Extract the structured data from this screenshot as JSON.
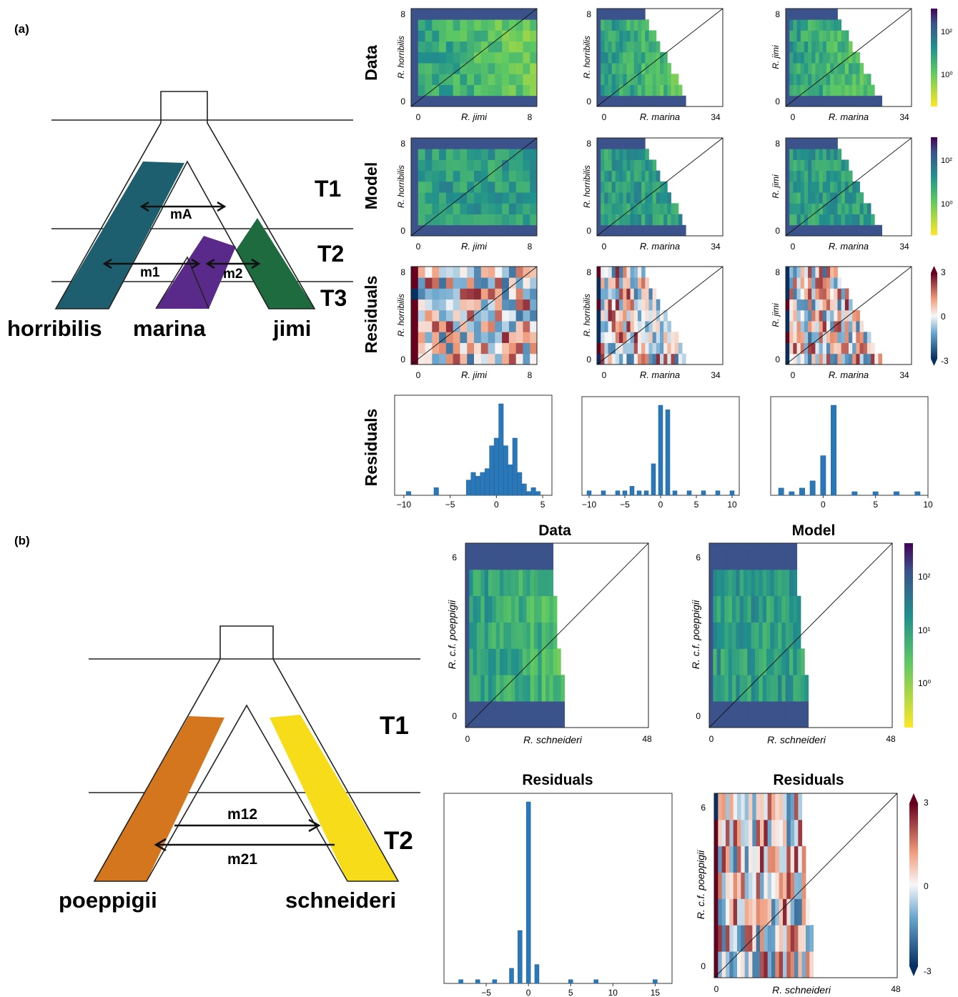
{
  "panel_a": {
    "tag": "(a)",
    "epochs": [
      "T1",
      "T2",
      "T3"
    ],
    "migrations": [
      "mA",
      "m1",
      "m2"
    ],
    "species": [
      "horribilis",
      "marina",
      "jimi"
    ],
    "row_labels": [
      "Data",
      "Model",
      "Residuals",
      "Residuals"
    ],
    "plots": [
      {
        "ylabel": "R. horribilis",
        "xlabel": "R. jimi",
        "ymin": "0",
        "ymax": "8",
        "xmin": "0",
        "xmax": "8"
      },
      {
        "ylabel": "R. horribilis",
        "xlabel": "R. marina",
        "ymin": "0",
        "ymax": "8",
        "xmin": "0",
        "xmax": "34"
      },
      {
        "ylabel": "R. jimi",
        "xlabel": "R. marina",
        "ymin": "0",
        "ymax": "8",
        "xmin": "0",
        "xmax": "34"
      }
    ],
    "colorbar_counts": [
      "10²",
      "10⁰"
    ],
    "colorbar_resid": [
      "3",
      "0",
      "-3"
    ],
    "hist_ticks": [
      [
        "−10",
        "−5",
        "0",
        "5"
      ],
      [
        "−10",
        "−5",
        "0",
        "5",
        "10"
      ],
      [
        "0",
        "5",
        "10"
      ]
    ]
  },
  "panel_b": {
    "tag": "(b)",
    "epochs": [
      "T1",
      "T2"
    ],
    "migrations": [
      "m12",
      "m21"
    ],
    "species": [
      "poeppigii",
      "schneideri"
    ],
    "titles": [
      "Data",
      "Model",
      "Residuals",
      "Residuals"
    ],
    "ylabel": "R. c.f. poeppigii",
    "xlabel": "R. schneideri",
    "ymin": "0",
    "ymax": "6",
    "xmin": "0",
    "xmax": "48",
    "colorbar_counts": [
      "10²",
      "10¹",
      "10⁰"
    ],
    "colorbar_resid": [
      "3",
      "0",
      "-3"
    ],
    "hist_ticks": [
      "−5",
      "0",
      "5",
      "10",
      "15"
    ]
  },
  "colors": {
    "horribilis": "#1d5f6e",
    "marina": "#5a2a8a",
    "jimi": "#1d6b3e",
    "poeppigii": "#d4761e",
    "schneideri": "#f7dc1a",
    "hist": "#2a78b8"
  },
  "chart_data": [
    {
      "type": "bar",
      "title": "",
      "xlabel": "",
      "ylabel": "",
      "x": [
        -9.5,
        -6.5,
        -3,
        -2.5,
        -2,
        -1.5,
        -1,
        -0.5,
        0,
        0.5,
        1,
        1.5,
        2,
        2.5,
        3,
        3.5,
        4,
        4.5
      ],
      "values": [
        1,
        2,
        4,
        6,
        5,
        6,
        7,
        13,
        15,
        24,
        13,
        8,
        15,
        6,
        3,
        1,
        2,
        1
      ]
    },
    {
      "type": "bar",
      "title": "",
      "xlabel": "",
      "ylabel": "",
      "x": [
        -10,
        -8,
        -6,
        -5,
        -4,
        -3,
        -2,
        -1,
        0,
        1,
        2,
        4,
        6,
        8,
        10
      ],
      "values": [
        1,
        1,
        1,
        1,
        2,
        1,
        1,
        7,
        20,
        19,
        1,
        1,
        1,
        1,
        1
      ]
    },
    {
      "type": "bar",
      "title": "",
      "xlabel": "",
      "ylabel": "",
      "x": [
        -4,
        -3,
        -2,
        -1,
        0,
        1,
        3,
        5,
        7,
        9
      ],
      "values": [
        2,
        1,
        2,
        4,
        11,
        25,
        1,
        1,
        1,
        1
      ]
    },
    {
      "type": "bar",
      "title": "",
      "xlabel": "",
      "ylabel": "",
      "x": [
        -8,
        -6,
        -4,
        -2,
        -1,
        0,
        1,
        5,
        8,
        15
      ],
      "values": [
        1,
        1,
        1,
        4,
        14,
        48,
        5,
        1,
        1,
        1
      ]
    }
  ]
}
